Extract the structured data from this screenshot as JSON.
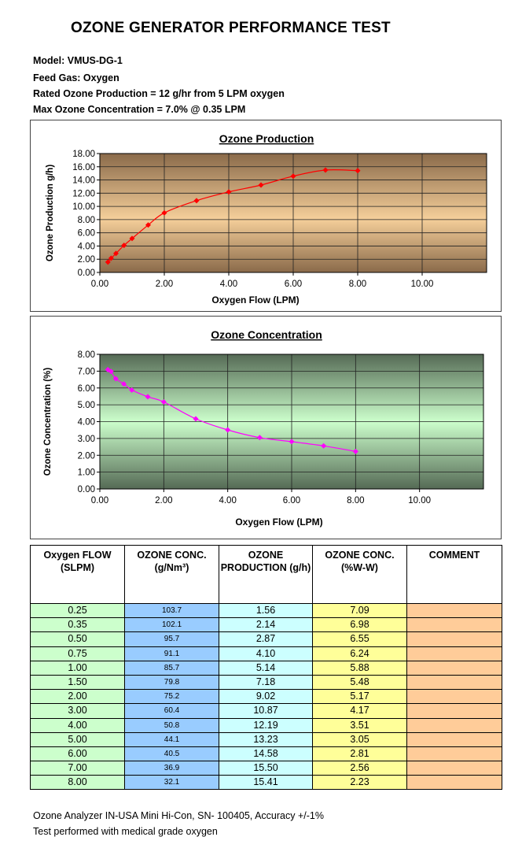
{
  "title": "OZONE GENERATOR PERFORMANCE TEST",
  "specs": [
    "Model: VMUS-DG-1",
    "Feed Gas: Oxygen",
    "Rated Ozone Production = 12 g/hr from 5 LPM oxygen",
    "Max Ozone Concentration = 7.0% @ 0.35 LPM"
  ],
  "colors": {
    "production_line": "#ff0000",
    "concentration_line": "#ff00ff"
  },
  "chart_data": [
    {
      "type": "line",
      "title": "Ozone Production",
      "xlabel": "Oxygen Flow (LPM)",
      "ylabel": "Ozone Production g/h)",
      "xlim": [
        0,
        12
      ],
      "ylim": [
        0,
        18
      ],
      "x_ticks": [
        "0.00",
        "2.00",
        "4.00",
        "6.00",
        "8.00",
        "10.00"
      ],
      "y_ticks": [
        "0.00",
        "2.00",
        "4.00",
        "6.00",
        "8.00",
        "10.00",
        "12.00",
        "14.00",
        "16.00",
        "18.00"
      ],
      "grid": true,
      "background": "brown-tan gradient",
      "x": [
        0.25,
        0.35,
        0.5,
        0.75,
        1.0,
        1.5,
        2.0,
        3.0,
        4.0,
        5.0,
        6.0,
        7.0,
        8.0
      ],
      "y": [
        1.56,
        2.14,
        2.87,
        4.1,
        5.14,
        7.18,
        9.02,
        10.87,
        12.19,
        13.23,
        14.58,
        15.5,
        15.41
      ]
    },
    {
      "type": "line",
      "title": "Ozone Concentration",
      "xlabel": "Oxygen Flow (LPM)",
      "ylabel": "Ozone Concentration (%)",
      "xlim": [
        0,
        12
      ],
      "ylim": [
        0,
        8
      ],
      "x_ticks": [
        "0.00",
        "2.00",
        "4.00",
        "6.00",
        "8.00",
        "10.00"
      ],
      "y_ticks": [
        "0.00",
        "1.00",
        "2.00",
        "3.00",
        "4.00",
        "5.00",
        "6.00",
        "7.00",
        "8.00"
      ],
      "grid": true,
      "background": "green gradient",
      "x": [
        0.25,
        0.35,
        0.5,
        0.75,
        1.0,
        1.5,
        2.0,
        3.0,
        4.0,
        5.0,
        6.0,
        7.0,
        8.0
      ],
      "y": [
        7.09,
        6.98,
        6.55,
        6.24,
        5.88,
        5.48,
        5.17,
        4.17,
        3.51,
        3.05,
        2.81,
        2.56,
        2.23
      ]
    }
  ],
  "table": {
    "headers": [
      "Oxygen FLOW (SLPM)",
      "OZONE CONC. (g/Nm³)",
      "OZONE PRODUCTION (g/h)",
      "OZONE CONC. (%W-W)",
      "COMMENT"
    ],
    "rows": [
      [
        "0.25",
        "103.7",
        "1.56",
        "7.09",
        ""
      ],
      [
        "0.35",
        "102.1",
        "2.14",
        "6.98",
        ""
      ],
      [
        "0.50",
        "95.7",
        "2.87",
        "6.55",
        ""
      ],
      [
        "0.75",
        "91.1",
        "4.10",
        "6.24",
        ""
      ],
      [
        "1.00",
        "85.7",
        "5.14",
        "5.88",
        ""
      ],
      [
        "1.50",
        "79.8",
        "7.18",
        "5.48",
        ""
      ],
      [
        "2.00",
        "75.2",
        "9.02",
        "5.17",
        ""
      ],
      [
        "3.00",
        "60.4",
        "10.87",
        "4.17",
        ""
      ],
      [
        "4.00",
        "50.8",
        "12.19",
        "3.51",
        ""
      ],
      [
        "5.00",
        "44.1",
        "13.23",
        "3.05",
        ""
      ],
      [
        "6.00",
        "40.5",
        "14.58",
        "2.81",
        ""
      ],
      [
        "7.00",
        "36.9",
        "15.50",
        "2.56",
        ""
      ],
      [
        "8.00",
        "32.1",
        "15.41",
        "2.23",
        ""
      ]
    ]
  },
  "footer": [
    "Ozone Analyzer IN-USA Mini Hi-Con, SN- 100405, Accuracy +/-1%",
    "Test performed with medical grade oxygen"
  ]
}
